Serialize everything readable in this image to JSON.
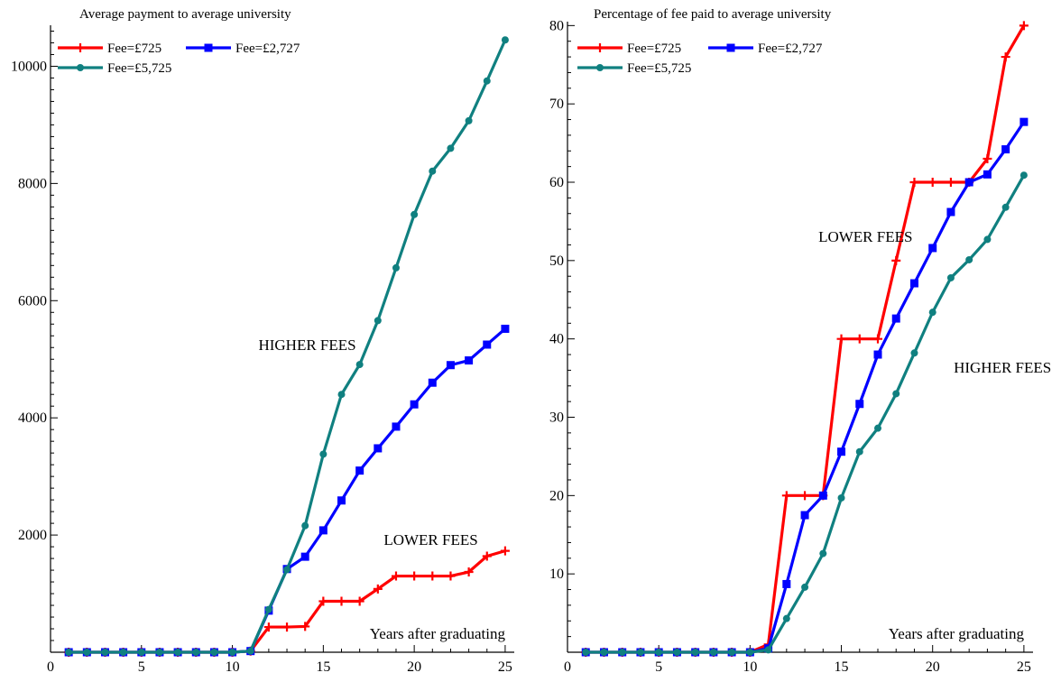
{
  "colors": {
    "fee_725": "#ff0000",
    "fee_2727": "#0000ff",
    "fee_5725": "#108080",
    "axes": "#000000",
    "background": "#ffffff"
  },
  "chart_data": [
    {
      "type": "line",
      "title": "Average payment to average university",
      "xlabel": "",
      "ylabel": "",
      "x_annotation": "Years after graduating",
      "xlim": [
        0,
        25.5
      ],
      "ylim": [
        0,
        10700
      ],
      "x_ticks": [
        0,
        5,
        10,
        15,
        20,
        25
      ],
      "y_ticks": [
        2000,
        4000,
        6000,
        8000,
        10000
      ],
      "x_minor_step": 1,
      "y_minor_step": 200,
      "grid": false,
      "legend_position": "top-left",
      "x": [
        1,
        2,
        3,
        4,
        5,
        6,
        7,
        8,
        9,
        10,
        11,
        12,
        13,
        14,
        15,
        16,
        17,
        18,
        19,
        20,
        21,
        22,
        23,
        24,
        25
      ],
      "series": [
        {
          "name": "Fee=£725",
          "color": "#ff0000",
          "marker": "plus",
          "values": [
            0,
            0,
            0,
            0,
            0,
            0,
            0,
            0,
            0,
            0,
            20,
            430,
            430,
            440,
            870,
            870,
            870,
            1080,
            1300,
            1300,
            1300,
            1300,
            1370,
            1640,
            1730
          ]
        },
        {
          "name": "Fee=£2,727",
          "color": "#0000ff",
          "marker": "square",
          "values": [
            0,
            0,
            0,
            0,
            0,
            0,
            0,
            0,
            0,
            0,
            20,
            710,
            1420,
            1630,
            2080,
            2590,
            3100,
            3480,
            3850,
            4230,
            4600,
            4900,
            4980,
            5250,
            5520
          ]
        },
        {
          "name": "Fee=£5,725",
          "color": "#108080",
          "marker": "circle",
          "values": [
            0,
            0,
            0,
            0,
            0,
            0,
            0,
            0,
            0,
            0,
            20,
            730,
            1410,
            2160,
            3380,
            4400,
            4910,
            5660,
            6560,
            7470,
            8210,
            8600,
            9070,
            9750,
            10450
          ]
        }
      ],
      "annotations": [
        {
          "text": "HIGHER FEES",
          "x": 16.8,
          "y": 5160
        },
        {
          "text": "LOWER FEES",
          "x": 23.5,
          "y": 1830
        }
      ]
    },
    {
      "type": "line",
      "title": "Percentage of fee paid to average university",
      "xlabel": "",
      "ylabel": "",
      "x_annotation": "Years after graduating",
      "xlim": [
        0,
        25.5
      ],
      "ylim": [
        0,
        80.5
      ],
      "x_ticks": [
        0,
        5,
        10,
        15,
        20,
        25
      ],
      "y_ticks": [
        10,
        20,
        30,
        40,
        50,
        60,
        70,
        80
      ],
      "x_minor_step": 1,
      "y_minor_step": 2,
      "grid": false,
      "legend_position": "top-left",
      "x": [
        1,
        2,
        3,
        4,
        5,
        6,
        7,
        8,
        9,
        10,
        11,
        12,
        13,
        14,
        15,
        16,
        17,
        18,
        19,
        20,
        21,
        22,
        23,
        24,
        25
      ],
      "series": [
        {
          "name": "Fee=£725",
          "color": "#ff0000",
          "marker": "plus",
          "values": [
            0,
            0,
            0,
            0,
            0,
            0,
            0,
            0,
            0,
            0,
            1,
            20,
            20,
            20,
            40,
            40,
            40,
            50,
            60,
            60,
            60,
            60,
            63,
            76,
            80
          ]
        },
        {
          "name": "Fee=£2,727",
          "color": "#0000ff",
          "marker": "square",
          "values": [
            0,
            0,
            0,
            0,
            0,
            0,
            0,
            0,
            0,
            0,
            0.5,
            8.7,
            17.5,
            20,
            25.6,
            31.7,
            38,
            42.6,
            47.1,
            51.6,
            56.2,
            60,
            61,
            64.2,
            67.7
          ]
        },
        {
          "name": "Fee=£5,725",
          "color": "#108080",
          "marker": "circle",
          "values": [
            0,
            0,
            0,
            0,
            0,
            0,
            0,
            0,
            0,
            0,
            0.3,
            4.3,
            8.3,
            12.6,
            19.7,
            25.6,
            28.6,
            33,
            38.2,
            43.4,
            47.8,
            50.1,
            52.7,
            56.8,
            60.9
          ]
        }
      ],
      "annotations": [
        {
          "text": "LOWER FEES",
          "x": 18.9,
          "y": 52.4
        },
        {
          "text": "HIGHER FEES",
          "x": 26.5,
          "y": 35.7
        }
      ]
    }
  ]
}
